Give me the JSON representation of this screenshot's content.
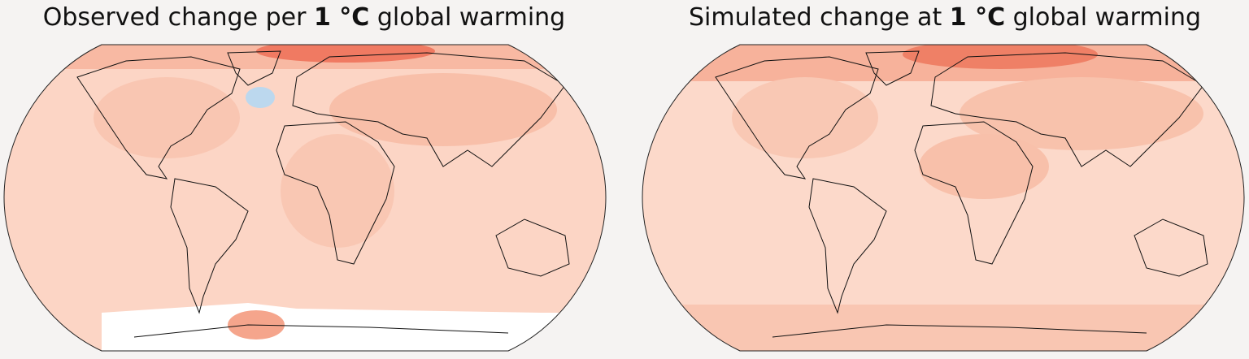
{
  "panels": [
    {
      "title": [
        {
          "text": "Observed change per ",
          "bold": false
        },
        {
          "text": "1 °C",
          "bold": true
        },
        {
          "text": " global warming",
          "bold": false
        }
      ]
    },
    {
      "title": [
        {
          "text": "Simulated change at ",
          "bold": false
        },
        {
          "text": "1 °C",
          "bold": true
        },
        {
          "text": " global warming",
          "bold": false
        }
      ]
    }
  ]
}
